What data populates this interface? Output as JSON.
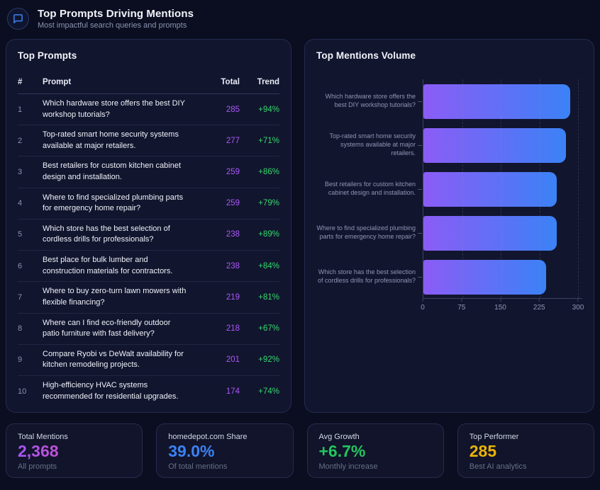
{
  "header": {
    "title": "Top Prompts Driving Mentions",
    "subtitle": "Most impactful search queries and prompts",
    "icon": "chat-bubble-icon"
  },
  "prompts_panel": {
    "title": "Top Prompts",
    "columns": {
      "rank": "#",
      "prompt": "Prompt",
      "total": "Total",
      "trend": "Trend"
    },
    "rows": [
      {
        "rank": "1",
        "prompt": "Which hardware store offers the best DIY workshop tutorials?",
        "total": "285",
        "trend": "+94%"
      },
      {
        "rank": "2",
        "prompt": "Top-rated smart home security systems available at major retailers.",
        "total": "277",
        "trend": "+71%"
      },
      {
        "rank": "3",
        "prompt": "Best retailers for custom kitchen cabinet design and installation.",
        "total": "259",
        "trend": "+86%"
      },
      {
        "rank": "4",
        "prompt": "Where to find specialized plumbing parts for emergency home repair?",
        "total": "259",
        "trend": "+79%"
      },
      {
        "rank": "5",
        "prompt": "Which store has the best selection of cordless drills for professionals?",
        "total": "238",
        "trend": "+89%"
      },
      {
        "rank": "6",
        "prompt": "Best place for bulk lumber and construction materials for contractors.",
        "total": "238",
        "trend": "+84%"
      },
      {
        "rank": "7",
        "prompt": "Where to buy zero-turn lawn mowers with flexible financing?",
        "total": "219",
        "trend": "+81%"
      },
      {
        "rank": "8",
        "prompt": "Where can I find eco-friendly outdoor patio furniture with fast delivery?",
        "total": "218",
        "trend": "+67%"
      },
      {
        "rank": "9",
        "prompt": "Compare Ryobi vs DeWalt availability for kitchen remodeling projects.",
        "total": "201",
        "trend": "+92%"
      },
      {
        "rank": "10",
        "prompt": "High-efficiency HVAC systems recommended for residential upgrades.",
        "total": "174",
        "trend": "+74%"
      }
    ]
  },
  "chart_panel": {
    "title": "Top Mentions Volume"
  },
  "chart_data": {
    "type": "bar",
    "orientation": "horizontal",
    "title": "Top Mentions Volume",
    "categories": [
      "Which hardware store offers the best DIY workshop tutorials?",
      "Top-rated smart home security systems available at major retailers.",
      "Best retailers for custom kitchen cabinet design and installation.",
      "Where to find specialized plumbing parts for emergency home repair?",
      "Which store has the best selection of cordless drills for professionals?"
    ],
    "values": [
      285,
      277,
      259,
      259,
      238
    ],
    "xlim": [
      0,
      300
    ],
    "x_ticks": [
      0,
      75,
      150,
      225,
      300
    ],
    "grid": "vertical-dashed",
    "legend": false,
    "bar_gradient": [
      "#8b5cf6",
      "#3b82f6"
    ]
  },
  "stats": [
    {
      "label": "Total Mentions",
      "value": "2,368",
      "sub": "All prompts",
      "value_color": [
        "#a855f7",
        "#ec4899"
      ]
    },
    {
      "label": "homedepot.com Share",
      "value": "39.0%",
      "sub": "Of total mentions",
      "value_color": "#3b82f6"
    },
    {
      "label": "Avg Growth",
      "value": "+6.7%",
      "sub": "Monthly increase",
      "value_color": "#22c55e"
    },
    {
      "label": "Top Performer",
      "value": "285",
      "sub": "Best AI analytics",
      "value_color": "#eab308"
    }
  ],
  "colors": {
    "background": "#0a0e20",
    "panel": "#12152e",
    "panel_border": "#272b4e",
    "accent_purple": "#a958f7",
    "accent_green": "#35d96e",
    "accent_blue": "#3b82f6",
    "accent_yellow": "#eab308"
  }
}
